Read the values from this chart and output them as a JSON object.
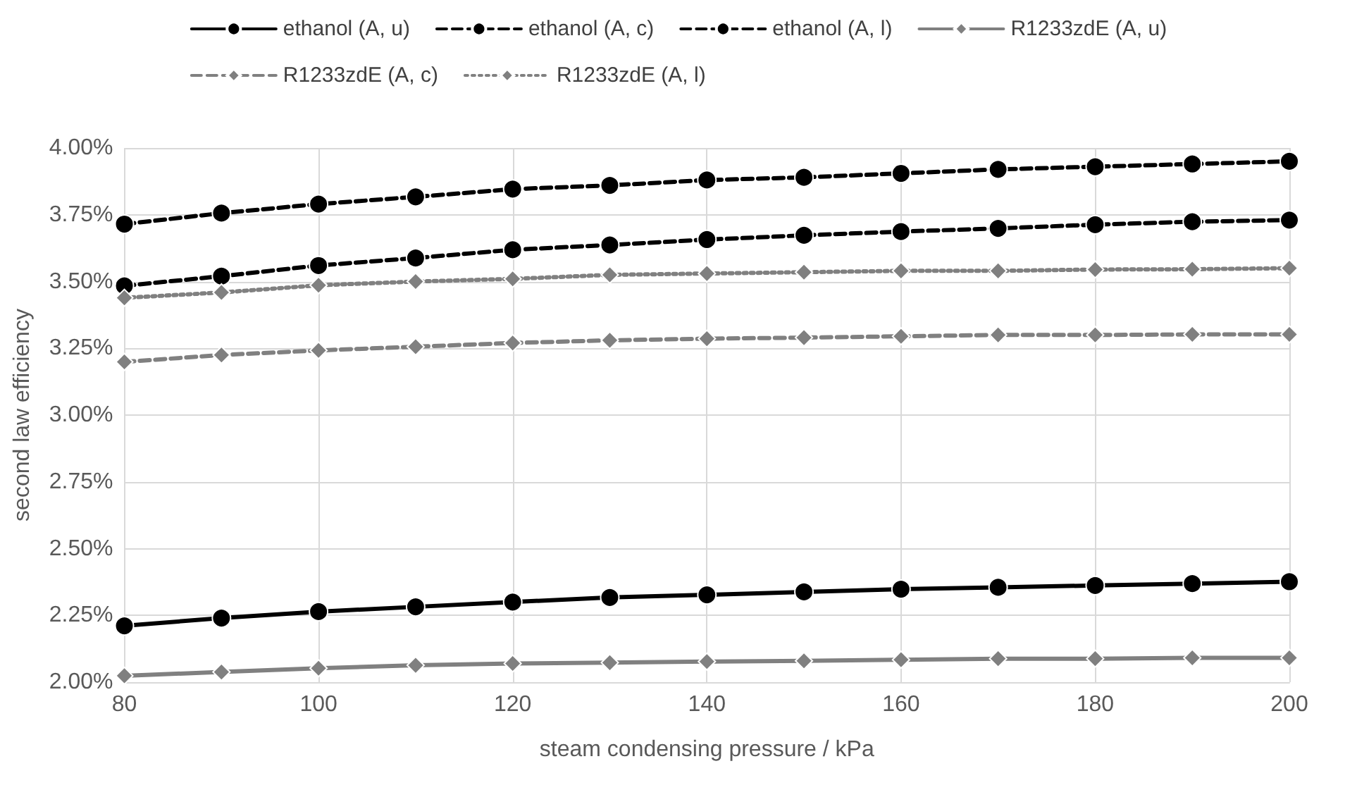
{
  "chart_data": {
    "type": "line",
    "xlabel": "steam condensing pressure / kPa",
    "ylabel": "second law efficiency",
    "x": [
      80,
      90,
      100,
      110,
      120,
      130,
      140,
      150,
      160,
      170,
      180,
      190,
      200
    ],
    "xlim": [
      80,
      200
    ],
    "xticks": [
      80,
      100,
      120,
      140,
      160,
      180,
      200
    ],
    "ylim": [
      2,
      4
    ],
    "yticks": [
      {
        "value": 2,
        "label": "2.00%"
      },
      {
        "value": 2.25,
        "label": "2.25%"
      },
      {
        "value": 2.5,
        "label": "2.50%"
      },
      {
        "value": 2.75,
        "label": "2.75%"
      },
      {
        "value": 3,
        "label": "3.00%"
      },
      {
        "value": 3.25,
        "label": "3.25%"
      },
      {
        "value": 3.5,
        "label": "3.50%"
      },
      {
        "value": 3.75,
        "label": "3.75%"
      },
      {
        "value": 4,
        "label": "4.00%"
      }
    ],
    "grid": true,
    "legend": "top",
    "series": [
      {
        "name": "ethanol (A, u)",
        "color": "#000000",
        "marker": "circle",
        "line_style": "solid",
        "values": [
          2.211,
          2.24,
          2.264,
          2.282,
          2.3,
          2.317,
          2.327,
          2.338,
          2.348,
          2.355,
          2.362,
          2.369,
          2.376
        ]
      },
      {
        "name": "ethanol (A, c)",
        "color": "#000000",
        "marker": "circle",
        "line_style": "dashed",
        "values": [
          3.484,
          3.52,
          3.56,
          3.588,
          3.619,
          3.637,
          3.657,
          3.673,
          3.687,
          3.699,
          3.713,
          3.724,
          3.73
        ]
      },
      {
        "name": "ethanol (A, l)",
        "color": "#000000",
        "marker": "circle",
        "line_style": "dashed",
        "values": [
          3.715,
          3.756,
          3.79,
          3.817,
          3.846,
          3.86,
          3.88,
          3.89,
          3.905,
          3.92,
          3.93,
          3.94,
          3.95
        ]
      },
      {
        "name": "R1233zdE (A, u)",
        "color": "#808080",
        "marker": "diamond",
        "line_style": "solid",
        "values": [
          2.024,
          2.038,
          2.052,
          2.063,
          2.07,
          2.073,
          2.077,
          2.08,
          2.084,
          2.088,
          2.088,
          2.091,
          2.091
        ]
      },
      {
        "name": "R1233zdE (A, c)",
        "color": "#808080",
        "marker": "diamond",
        "line_style": "dashed",
        "values": [
          3.199,
          3.225,
          3.242,
          3.256,
          3.27,
          3.28,
          3.286,
          3.29,
          3.295,
          3.3,
          3.3,
          3.302,
          3.302
        ]
      },
      {
        "name": "R1233zdE (A, l)",
        "color": "#808080",
        "marker": "diamond",
        "line_style": "dotted",
        "values": [
          3.439,
          3.459,
          3.486,
          3.5,
          3.51,
          3.525,
          3.53,
          3.535,
          3.54,
          3.54,
          3.545,
          3.546,
          3.55
        ]
      }
    ]
  }
}
